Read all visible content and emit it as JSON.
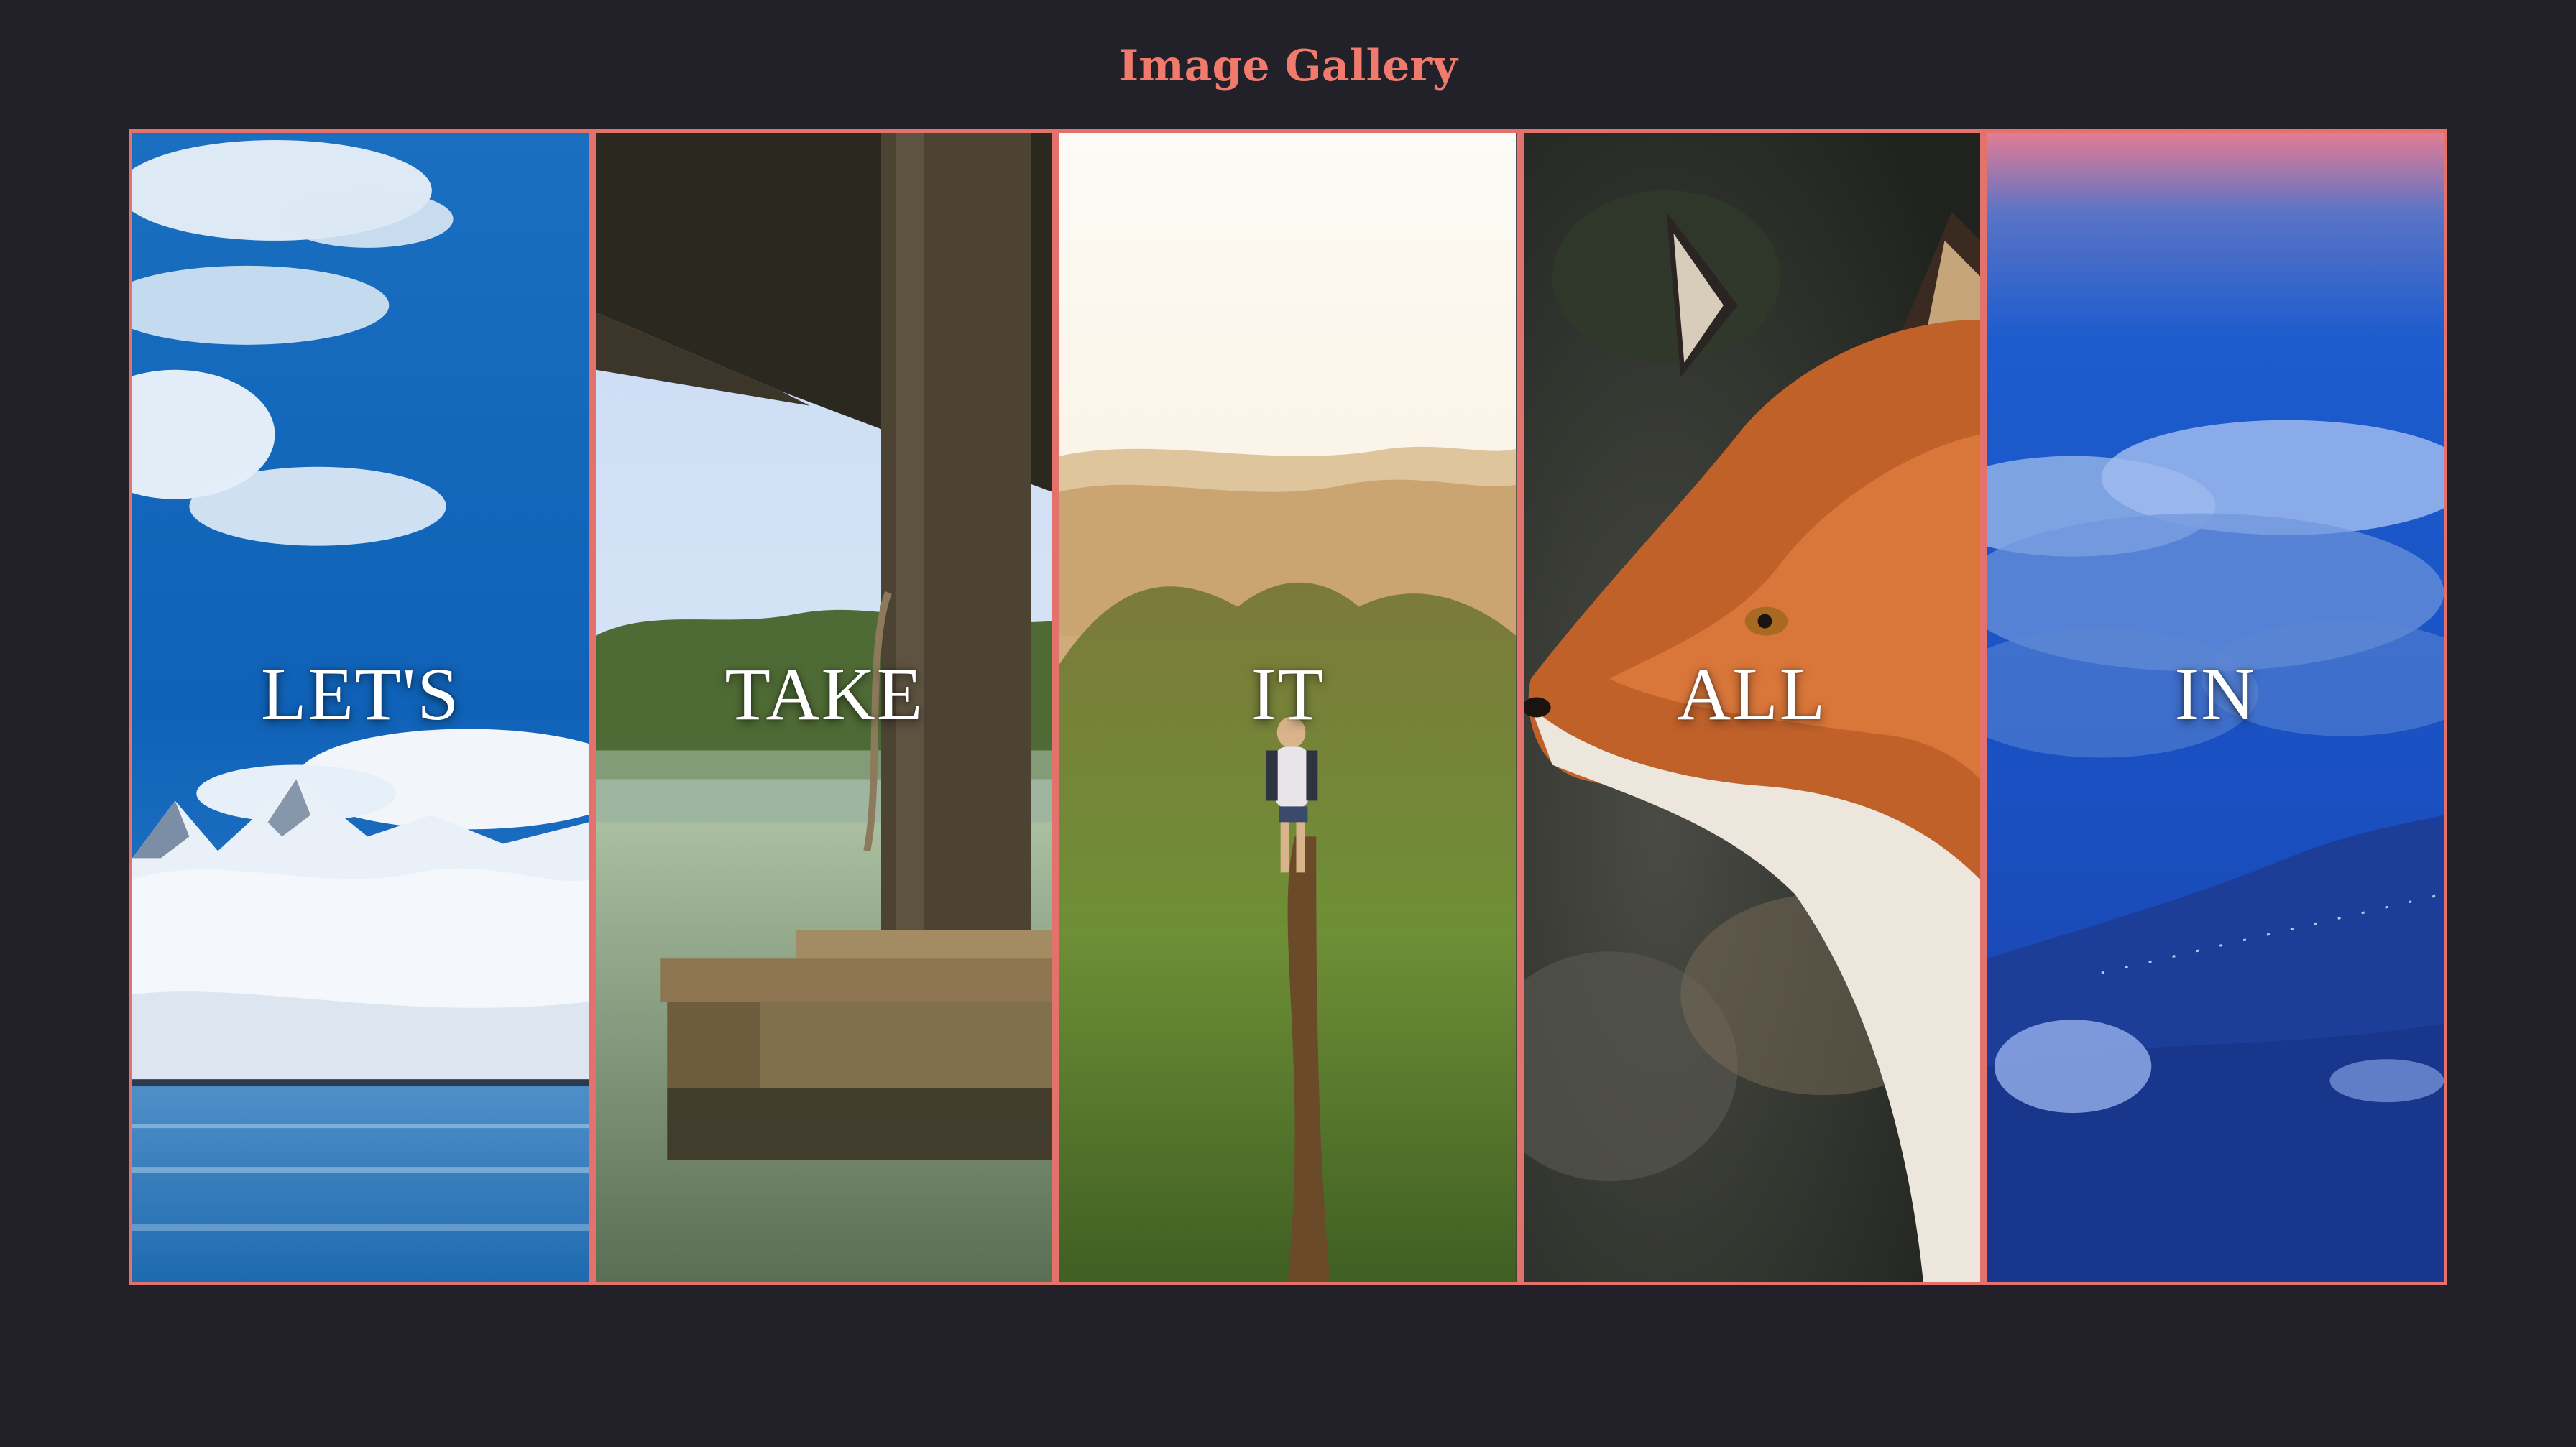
{
  "page": {
    "title": "Image Gallery"
  },
  "gallery": {
    "panels": [
      {
        "label": "LET'S",
        "scene": "snowy-mountain-lake"
      },
      {
        "label": "TAKE",
        "scene": "wooden-dock-lake"
      },
      {
        "label": "IT",
        "scene": "hiker-mountain-ridge"
      },
      {
        "label": "ALL",
        "scene": "red-fox-portrait"
      },
      {
        "label": "IN",
        "scene": "blue-clouds-hillside"
      }
    ]
  },
  "colors": {
    "background": "#22212a",
    "accent": "#f07a6c",
    "panel_border": "#e4726c"
  }
}
